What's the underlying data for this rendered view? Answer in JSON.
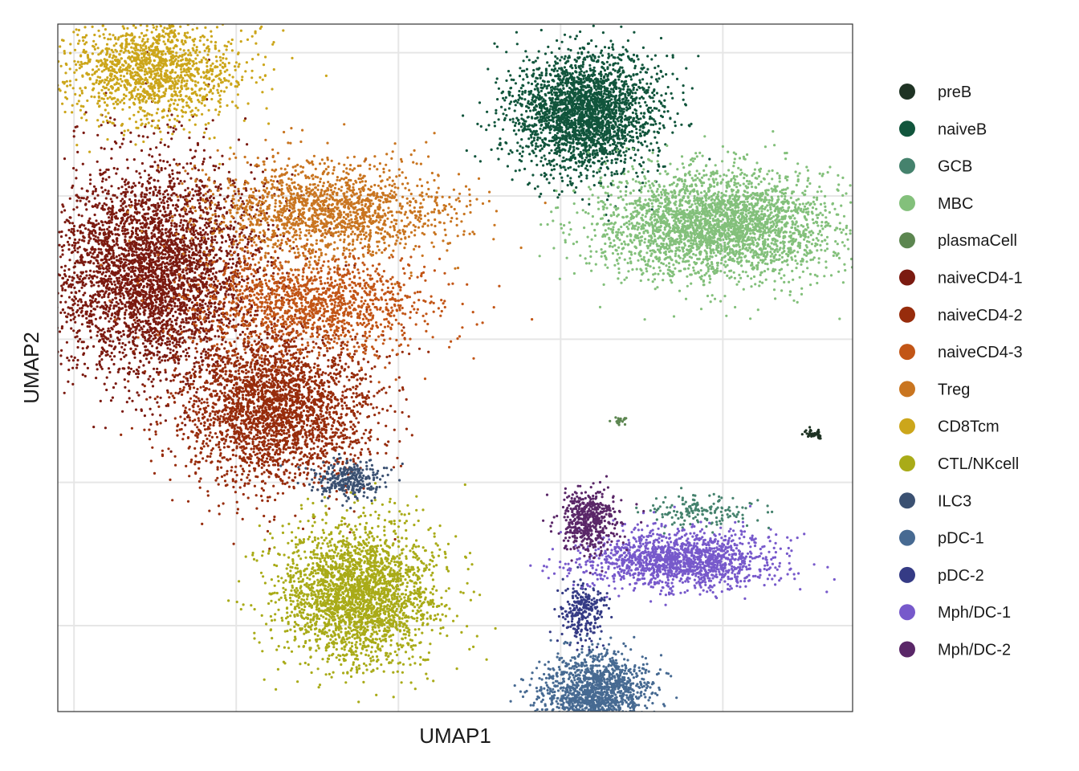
{
  "chart_data": {
    "type": "scatter",
    "title": "",
    "xlabel": "UMAP1",
    "ylabel": "UMAP2",
    "xlim": [
      -10.5,
      14
    ],
    "ylim": [
      -9,
      15
    ],
    "x_grid": [
      -10,
      -5,
      0,
      5,
      10
    ],
    "y_grid": [
      -6,
      -1,
      4,
      9,
      14
    ],
    "grid": true,
    "tick_labels_shown": false,
    "legend_position": "right",
    "clusters": [
      {
        "name": "preB",
        "color": "#1f3324",
        "cx": 12.8,
        "cy": 0.7,
        "sx": 0.3,
        "sy": 0.15,
        "n": 40
      },
      {
        "name": "naiveB",
        "color": "#11553c",
        "cx": 5.8,
        "cy": 11.9,
        "sx": 2.0,
        "sy": 1.9,
        "n": 2600
      },
      {
        "name": "GCB",
        "color": "#45826d",
        "cx": 9.3,
        "cy": -2.0,
        "sx": 1.5,
        "sy": 0.5,
        "n": 160
      },
      {
        "name": "MBC",
        "color": "#83c07b",
        "cx": 9.8,
        "cy": 8.0,
        "sx": 3.4,
        "sy": 1.7,
        "n": 3000
      },
      {
        "name": "plasmaCell",
        "color": "#5c8650",
        "cx": 6.8,
        "cy": 1.1,
        "sx": 0.3,
        "sy": 0.15,
        "n": 20
      },
      {
        "name": "naiveCD4-1",
        "color": "#7b1a10",
        "cx": -7.6,
        "cy": 6.4,
        "sx": 2.9,
        "sy": 3.4,
        "n": 4000
      },
      {
        "name": "naiveCD4-2",
        "color": "#972c0c",
        "cx": -3.7,
        "cy": 1.6,
        "sx": 2.7,
        "sy": 2.5,
        "n": 2800
      },
      {
        "name": "naiveCD4-3",
        "color": "#c25516",
        "cx": -2.7,
        "cy": 5.3,
        "sx": 3.3,
        "sy": 1.5,
        "n": 1400
      },
      {
        "name": "Treg",
        "color": "#c97520",
        "cx": -2.2,
        "cy": 8.5,
        "sx": 3.4,
        "sy": 1.5,
        "n": 1600
      },
      {
        "name": "CD8Tcm",
        "color": "#cca61b",
        "cx": -7.6,
        "cy": 13.4,
        "sx": 2.5,
        "sy": 1.6,
        "n": 1500
      },
      {
        "name": "CTL/NKcell",
        "color": "#a9ab18",
        "cx": -1.2,
        "cy": -4.9,
        "sx": 2.2,
        "sy": 2.2,
        "n": 2600
      },
      {
        "name": "ILC3",
        "color": "#3b5172",
        "cx": -1.5,
        "cy": -0.9,
        "sx": 1.0,
        "sy": 0.6,
        "n": 300
      },
      {
        "name": "pDC-1",
        "color": "#476a92",
        "cx": 6.1,
        "cy": -8.3,
        "sx": 1.5,
        "sy": 1.2,
        "n": 1400
      },
      {
        "name": "pDC-2",
        "color": "#353b85",
        "cx": 5.7,
        "cy": -5.5,
        "sx": 0.6,
        "sy": 1.0,
        "n": 260
      },
      {
        "name": "Mph/DC-1",
        "color": "#7759cb",
        "cx": 8.7,
        "cy": -3.7,
        "sx": 2.6,
        "sy": 0.9,
        "n": 1500
      },
      {
        "name": "Mph/DC-2",
        "color": "#5a2768",
        "cx": 5.9,
        "cy": -2.3,
        "sx": 0.8,
        "sy": 1.0,
        "n": 500
      }
    ]
  }
}
